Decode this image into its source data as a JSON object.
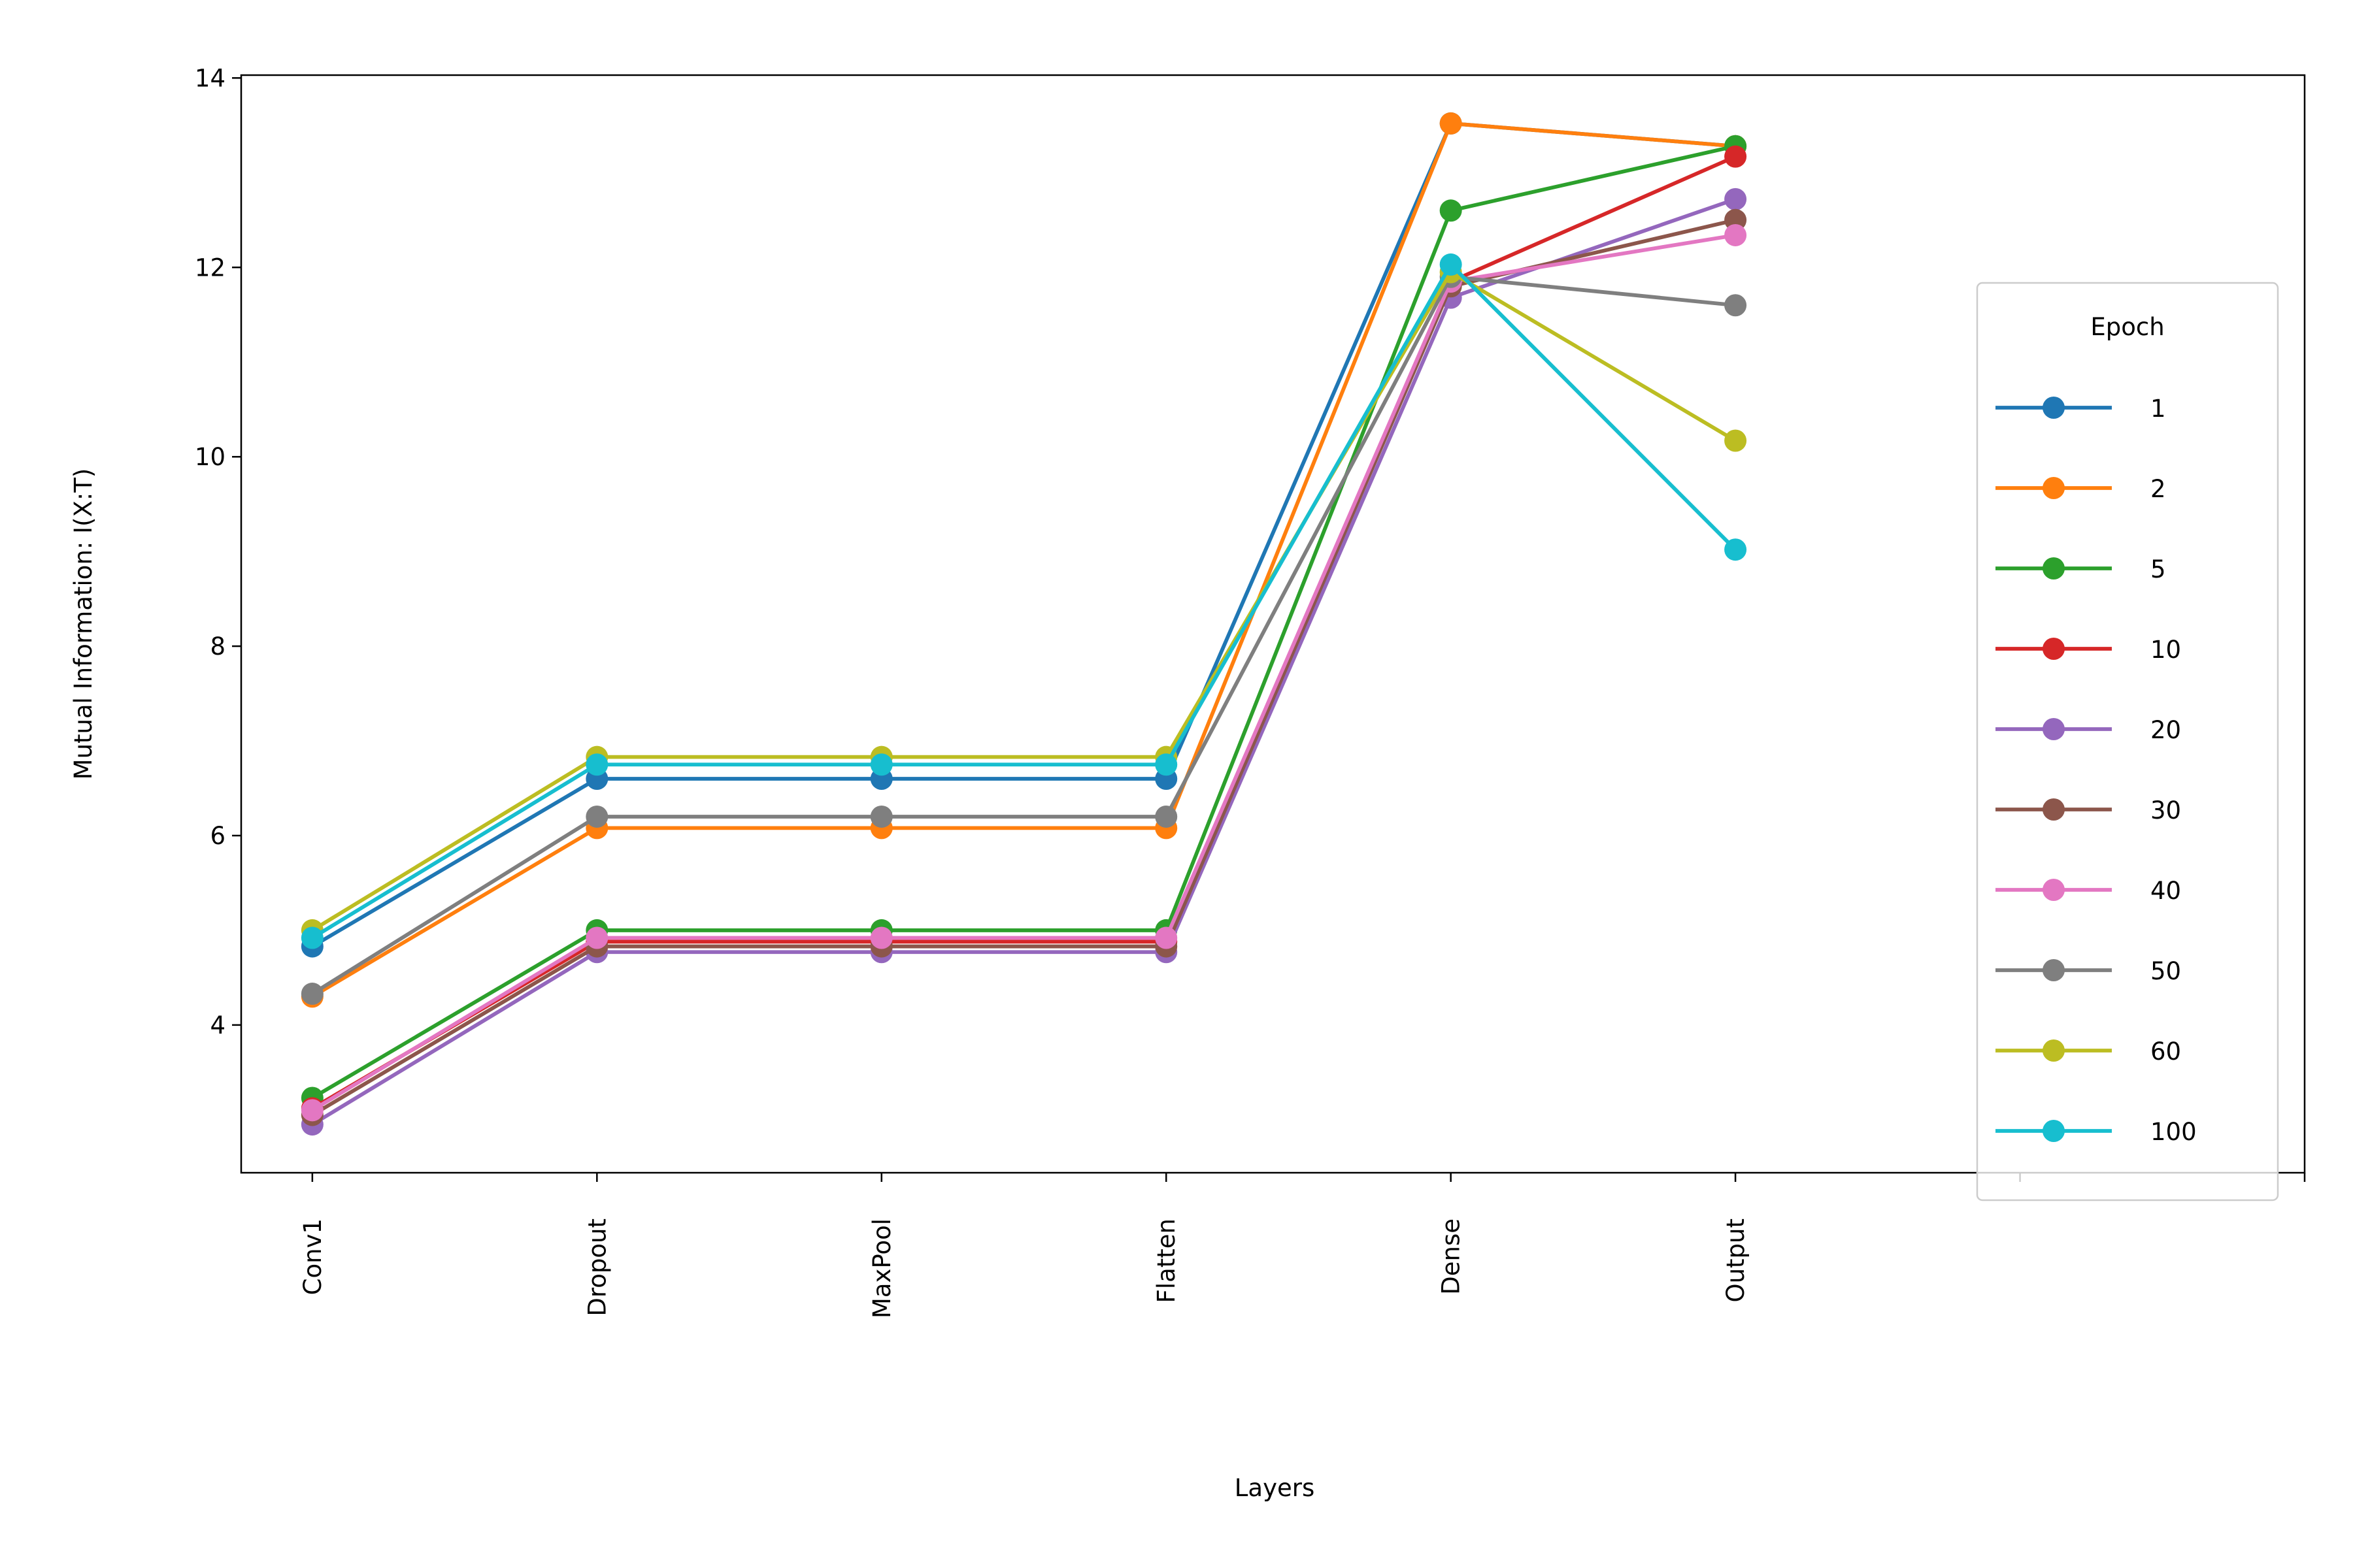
{
  "chart_data": {
    "type": "line",
    "x_label": "Layers",
    "y_label": "Mutual Information: I(X:T)",
    "categories": [
      "Conv1",
      "Dropout",
      "MaxPool",
      "Flatten",
      "Dense",
      "Output",
      null,
      null
    ],
    "ylim": [
      2.44,
      14.03
    ],
    "yticks": [
      4,
      6,
      8,
      10,
      12,
      14
    ],
    "legend": {
      "title": "Epoch",
      "loc": "center right"
    },
    "series": [
      {
        "name": "1",
        "color": "#1f77b4",
        "values": [
          4.83,
          6.6,
          6.6,
          6.6,
          13.52,
          13.28,
          null,
          null
        ]
      },
      {
        "name": "2",
        "color": "#ff7f0e",
        "values": [
          4.3,
          6.08,
          6.08,
          6.08,
          13.52,
          13.28,
          null,
          null
        ]
      },
      {
        "name": "5",
        "color": "#2ca02c",
        "values": [
          3.23,
          5.0,
          5.0,
          5.0,
          12.6,
          13.28,
          null,
          null
        ]
      },
      {
        "name": "10",
        "color": "#d62728",
        "values": [
          3.12,
          4.88,
          4.88,
          4.88,
          11.85,
          13.17,
          null,
          null
        ]
      },
      {
        "name": "20",
        "color": "#9467bd",
        "values": [
          2.95,
          4.77,
          4.77,
          4.77,
          11.68,
          12.72,
          null,
          null
        ]
      },
      {
        "name": "30",
        "color": "#8c564b",
        "values": [
          3.05,
          4.83,
          4.83,
          4.83,
          11.8,
          12.5,
          null,
          null
        ]
      },
      {
        "name": "40",
        "color": "#e377c2",
        "values": [
          3.1,
          4.92,
          4.92,
          4.92,
          11.85,
          12.34,
          null,
          null
        ]
      },
      {
        "name": "50",
        "color": "#7f7f7f",
        "values": [
          4.33,
          6.2,
          6.2,
          6.2,
          11.9,
          11.6,
          null,
          null
        ]
      },
      {
        "name": "60",
        "color": "#bcbd22",
        "values": [
          5.0,
          6.83,
          6.83,
          6.83,
          11.95,
          10.17,
          null,
          null
        ]
      },
      {
        "name": "100",
        "color": "#17becf",
        "values": [
          4.92,
          6.75,
          6.75,
          6.75,
          12.03,
          9.02,
          null,
          null
        ]
      }
    ]
  }
}
